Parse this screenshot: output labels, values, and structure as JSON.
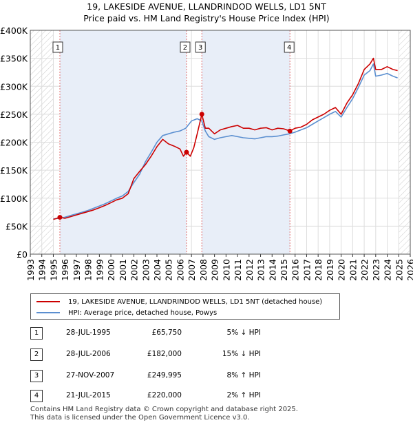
{
  "header": {
    "title_line1": "19, LAKESIDE AVENUE, LLANDRINDOD WELLS, LD1 5NT",
    "title_line2": "Price paid vs. HM Land Registry's House Price Index (HPI)"
  },
  "colors": {
    "property_line": "#cc0000",
    "hpi_line": "#5b8fd0",
    "shade": "#e8eef8",
    "marker_line": "#e07070"
  },
  "chart_data": {
    "type": "line",
    "ylim": [
      0,
      400000
    ],
    "xlim": [
      1993,
      2026
    ],
    "y_ticks": [
      {
        "value": 0,
        "label": "£0"
      },
      {
        "value": 50000,
        "label": "£50K"
      },
      {
        "value": 100000,
        "label": "£100K"
      },
      {
        "value": 150000,
        "label": "£150K"
      },
      {
        "value": 200000,
        "label": "£200K"
      },
      {
        "value": 250000,
        "label": "£250K"
      },
      {
        "value": 300000,
        "label": "£300K"
      },
      {
        "value": 350000,
        "label": "£350K"
      },
      {
        "value": 400000,
        "label": "£400K"
      }
    ],
    "x_ticks": [
      "1993",
      "1994",
      "1995",
      "1996",
      "1997",
      "1998",
      "1999",
      "2000",
      "2001",
      "2002",
      "2003",
      "2004",
      "2005",
      "2006",
      "2007",
      "2008",
      "2009",
      "2010",
      "2011",
      "2012",
      "2013",
      "2014",
      "2015",
      "2016",
      "2017",
      "2018",
      "2019",
      "2020",
      "2021",
      "2022",
      "2023",
      "2024",
      "2025",
      "2026"
    ],
    "hatched_ranges": [
      [
        1993,
        1995.0
      ],
      [
        2025.0,
        2026
      ]
    ],
    "shaded_ranges": [
      [
        1995.57,
        2006.57
      ],
      [
        2007.9,
        2015.55
      ]
    ],
    "series": [
      {
        "name": "19, LAKESIDE AVENUE, LLANDRINDOD WELLS, LD1 5NT (detached house)",
        "color": "#cc0000",
        "x": [
          1995.0,
          1995.57,
          1996.0,
          1996.5,
          1997.0,
          1997.5,
          1998.0,
          1998.5,
          1999.0,
          1999.5,
          2000.0,
          2000.5,
          2001.0,
          2001.5,
          2002.0,
          2002.5,
          2003.0,
          2003.5,
          2004.0,
          2004.5,
          2005.0,
          2005.5,
          2006.0,
          2006.3,
          2006.57,
          2006.9,
          2007.2,
          2007.5,
          2007.9,
          2008.2,
          2008.5,
          2009.0,
          2009.5,
          2010.0,
          2010.5,
          2011.0,
          2011.5,
          2012.0,
          2012.5,
          2013.0,
          2013.5,
          2014.0,
          2014.5,
          2015.0,
          2015.55,
          2016.0,
          2016.5,
          2017.0,
          2017.5,
          2018.0,
          2018.5,
          2019.0,
          2019.5,
          2020.0,
          2020.5,
          2021.0,
          2021.5,
          2022.0,
          2022.5,
          2022.8,
          2023.0,
          2023.5,
          2024.0,
          2024.5,
          2024.9
        ],
        "values": [
          62000,
          65750,
          64000,
          67000,
          70000,
          73000,
          76000,
          79000,
          83000,
          87000,
          92000,
          97000,
          100000,
          108000,
          135000,
          148000,
          160000,
          175000,
          192000,
          205000,
          197000,
          193000,
          188000,
          175000,
          182000,
          175000,
          190000,
          215000,
          249995,
          225000,
          225000,
          215000,
          222000,
          225000,
          228000,
          230000,
          225000,
          225000,
          222000,
          225000,
          226000,
          222000,
          225000,
          224000,
          220000,
          225000,
          227000,
          232000,
          240000,
          245000,
          250000,
          257000,
          262000,
          250000,
          270000,
          285000,
          305000,
          330000,
          340000,
          350000,
          330000,
          330000,
          335000,
          330000,
          328000
        ]
      },
      {
        "name": "HPI: Average price, detached house, Powys",
        "color": "#5b8fd0",
        "x": [
          1995.0,
          1995.5,
          1996.0,
          1996.5,
          1997.0,
          1997.5,
          1998.0,
          1998.5,
          1999.0,
          1999.5,
          2000.0,
          2000.5,
          2001.0,
          2001.5,
          2002.0,
          2002.5,
          2003.0,
          2003.5,
          2004.0,
          2004.5,
          2005.0,
          2005.5,
          2006.0,
          2006.5,
          2007.0,
          2007.5,
          2007.9,
          2008.2,
          2008.5,
          2009.0,
          2009.5,
          2010.0,
          2010.5,
          2011.0,
          2011.5,
          2012.0,
          2012.5,
          2013.0,
          2013.5,
          2014.0,
          2014.5,
          2015.0,
          2015.5,
          2016.0,
          2016.5,
          2017.0,
          2017.5,
          2018.0,
          2018.5,
          2019.0,
          2019.5,
          2020.0,
          2020.5,
          2021.0,
          2021.5,
          2022.0,
          2022.5,
          2022.8,
          2023.0,
          2023.5,
          2024.0,
          2024.5,
          2024.9
        ],
        "values": [
          63000,
          64000,
          66000,
          69000,
          72000,
          75000,
          78000,
          82000,
          86000,
          90000,
          95000,
          100000,
          104000,
          112000,
          128000,
          143000,
          165000,
          182000,
          200000,
          212000,
          215000,
          218000,
          220000,
          225000,
          238000,
          242000,
          238000,
          220000,
          210000,
          205000,
          208000,
          210000,
          212000,
          210000,
          208000,
          207000,
          206000,
          208000,
          210000,
          210000,
          211000,
          213000,
          215000,
          218000,
          222000,
          226000,
          232000,
          238000,
          244000,
          250000,
          255000,
          245000,
          262000,
          278000,
          298000,
          320000,
          328000,
          340000,
          318000,
          320000,
          323000,
          318000,
          315000
        ]
      }
    ],
    "markers": [
      {
        "id": "1",
        "x": 1995.57,
        "value": 65750
      },
      {
        "id": "2",
        "x": 2006.57,
        "value": 182000
      },
      {
        "id": "3",
        "x": 2007.9,
        "value": 249995
      },
      {
        "id": "4",
        "x": 2015.55,
        "value": 220000
      }
    ]
  },
  "legend": {
    "property_label": "19, LAKESIDE AVENUE, LLANDRINDOD WELLS, LD1 5NT (detached house)",
    "hpi_label": "HPI: Average price, detached house, Powys"
  },
  "transactions": [
    {
      "num": "1",
      "date": "28-JUL-1995",
      "price": "£65,750",
      "hpi": "5% ↓ HPI"
    },
    {
      "num": "2",
      "date": "28-JUL-2006",
      "price": "£182,000",
      "hpi": "15% ↓ HPI"
    },
    {
      "num": "3",
      "date": "27-NOV-2007",
      "price": "£249,995",
      "hpi": "8% ↑ HPI"
    },
    {
      "num": "4",
      "date": "21-JUL-2015",
      "price": "£220,000",
      "hpi": "2% ↑ HPI"
    }
  ],
  "footer": {
    "line1": "Contains HM Land Registry data © Crown copyright and database right 2025.",
    "line2": "This data is licensed under the Open Government Licence v3.0."
  }
}
